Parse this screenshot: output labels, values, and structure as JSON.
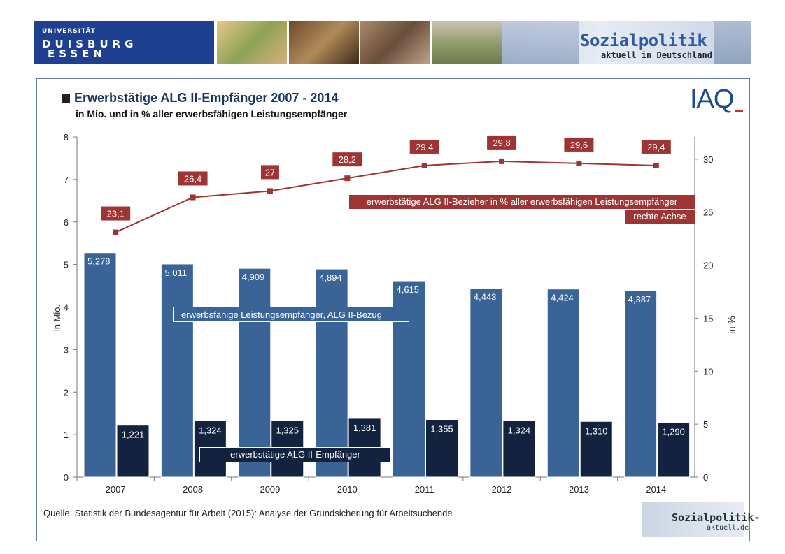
{
  "banner": {
    "uni_line1": "UNIVERSITÄT",
    "uni_line2": "DUISBURG",
    "uni_line3": "ESSEN",
    "brand_title": "Sozialpolitik",
    "brand_subtitle": "aktuell in Deutschland"
  },
  "footer": {
    "source": "Quelle: Statistik der Bundesagentur für Arbeit (2015): Analyse der Grundsicherung für Arbeitsuchende",
    "logo_line1": "Sozialpolitik-",
    "logo_line2": "aktuell.de"
  },
  "logo_iaq": "IAQ",
  "chart_data": {
    "type": "bar",
    "title": "Erwerbstätige ALG II-Empfänger 2007 - 2014",
    "subtitle": "in Mio. und in % aller erwerbsfähigen Leistungsempfänger",
    "categories": [
      "2007",
      "2008",
      "2009",
      "2010",
      "2011",
      "2012",
      "2013",
      "2014"
    ],
    "ylabel_left": "in Mio.",
    "ylabel_right": "in %",
    "ylim_left": [
      0,
      8
    ],
    "yticks_left": [
      "0",
      "1",
      "2",
      "3",
      "4",
      "5",
      "6",
      "7",
      "8"
    ],
    "ylim_right": [
      0,
      33
    ],
    "yticks_right": [
      "0",
      "5",
      "10",
      "15",
      "20",
      "25",
      "30"
    ],
    "series": [
      {
        "name": "erwerbsfähige Leistungsempfänger, ALG II-Bezug",
        "axis": "left",
        "kind": "bar",
        "values": [
          5.278,
          5.011,
          4.909,
          4.894,
          4.615,
          4.443,
          4.424,
          4.387
        ],
        "labels": [
          "5,278",
          "5,011",
          "4,909",
          "4,894",
          "4,615",
          "4,443",
          "4,424",
          "4,387"
        ],
        "color": "#3a6496"
      },
      {
        "name": "erwerbstätige ALG II-Empfänger",
        "axis": "left",
        "kind": "bar",
        "values": [
          1.221,
          1.324,
          1.325,
          1.381,
          1.355,
          1.324,
          1.31,
          1.29
        ],
        "labels": [
          "1,221",
          "1,324",
          "1,325",
          "1,381",
          "1,355",
          "1,324",
          "1,310",
          "1,290"
        ],
        "color": "#13233f"
      },
      {
        "name": "erwerbstätige ALG II-Bezieher in % aller erwerbsfähigen Leistungsempfänger",
        "axis": "right",
        "kind": "line",
        "values": [
          23.1,
          26.4,
          27.0,
          28.2,
          29.4,
          29.8,
          29.6,
          29.4
        ],
        "labels": [
          "23,1",
          "26,4",
          "27",
          "28,2",
          "29,4",
          "29,8",
          "29,6",
          "29,4"
        ],
        "color": "#9e3434"
      }
    ],
    "line_note": "rechte Achse",
    "grid": false
  }
}
